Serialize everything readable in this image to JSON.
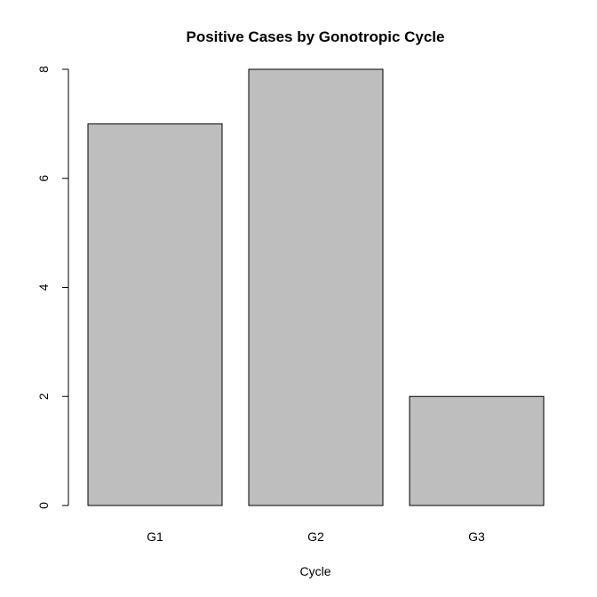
{
  "chart_data": {
    "type": "bar",
    "title": "Positive Cases by Gonotropic Cycle",
    "xlabel": "Cycle",
    "ylabel": "",
    "categories": [
      "G1",
      "G2",
      "G3"
    ],
    "values": [
      7,
      8,
      2
    ],
    "ylim": [
      0,
      8
    ],
    "yticks": [
      "0",
      "2",
      "4",
      "6",
      "8"
    ],
    "bar_color": "#bebebe",
    "grid": false,
    "legend": "none"
  }
}
